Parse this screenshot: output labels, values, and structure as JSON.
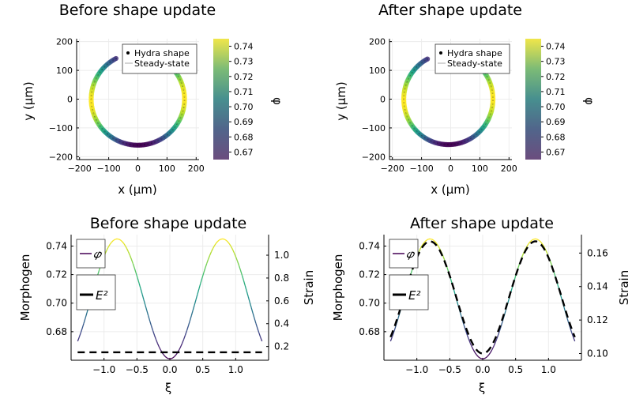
{
  "colors": {
    "viridis": [
      "#440154",
      "#482878",
      "#3e4989",
      "#31688e",
      "#26828e",
      "#1f9e89",
      "#35b779",
      "#6ece58",
      "#b5de2b",
      "#fde725"
    ]
  },
  "chart_data": [
    {
      "type": "scatter",
      "title": "Before shape update",
      "xlabel": "x (μm)",
      "ylabel": "y (μm)",
      "xlim": [
        -210,
        210
      ],
      "ylim": [
        -210,
        210
      ],
      "xticks": [
        "−200",
        "−100",
        "0",
        "100",
        "200"
      ],
      "xtick_values": [
        -200,
        -100,
        0,
        100,
        200
      ],
      "yticks": [
        "200",
        "100",
        "0",
        "−100",
        "−200"
      ],
      "ytick_values": [
        200,
        100,
        0,
        -100,
        -200
      ],
      "legend": [
        "Hydra shape",
        "Steady-state"
      ],
      "legend_position": "top-right",
      "colorbar_label": "φ",
      "colorbar_ticks": [
        "0.74",
        "0.73",
        "0.72",
        "0.71",
        "0.70",
        "0.69",
        "0.68",
        "0.67"
      ],
      "colorbar_tick_values": [
        0.74,
        0.73,
        0.72,
        0.71,
        0.7,
        0.69,
        0.68,
        0.67
      ],
      "colorbar_range": [
        0.665,
        0.745
      ],
      "shape": {
        "rx": 160,
        "cy": 0,
        "ry": 160,
        "cx": 0,
        "gap_start_deg": 70,
        "gap_end_deg": 118
      },
      "grid": true
    },
    {
      "type": "scatter",
      "title": "After shape update",
      "xlabel": "x (μm)",
      "ylabel": "y (μm)",
      "xlim": [
        -210,
        210
      ],
      "ylim": [
        -210,
        210
      ],
      "xticks": [
        "−200",
        "−100",
        "0",
        "100",
        "200"
      ],
      "xtick_values": [
        -200,
        -100,
        0,
        100,
        200
      ],
      "yticks": [
        "200",
        "100",
        "0",
        "−100",
        "−200"
      ],
      "ytick_values": [
        200,
        100,
        0,
        -100,
        -200
      ],
      "legend": [
        "Hydra shape",
        "Steady-state"
      ],
      "legend_position": "top-right",
      "colorbar_label": "φ",
      "colorbar_ticks": [
        "0.74",
        "0.73",
        "0.72",
        "0.71",
        "0.70",
        "0.69",
        "0.68",
        "0.67"
      ],
      "colorbar_tick_values": [
        0.74,
        0.73,
        0.72,
        0.71,
        0.7,
        0.69,
        0.68,
        0.67
      ],
      "colorbar_range": [
        0.665,
        0.745
      ],
      "shape": {
        "rx": 153,
        "cy": 0,
        "ry": 158,
        "cx": -8,
        "gap_start_deg": 70,
        "gap_end_deg": 118
      },
      "grid": true
    },
    {
      "type": "line",
      "title": "Before shape update",
      "xlabel": "ξ",
      "ylabel": "Morphogen",
      "y2label": "Strain",
      "xlim": [
        -1.5,
        1.5
      ],
      "ylim": [
        0.66,
        0.748
      ],
      "y2lim": [
        0.08,
        1.18
      ],
      "xticks": [
        "−1.0",
        "−0.5",
        "0.0",
        "0.5",
        "1.0"
      ],
      "xtick_values": [
        -1.0,
        -0.5,
        0.0,
        0.5,
        1.0
      ],
      "yticks": [
        "0.74",
        "0.72",
        "0.70",
        "0.68"
      ],
      "ytick_values": [
        0.74,
        0.72,
        0.7,
        0.68
      ],
      "y2ticks": [
        "1.0",
        "0.8",
        "0.6",
        "0.4",
        "0.2"
      ],
      "y2tick_values": [
        1.0,
        0.8,
        0.6,
        0.4,
        0.2
      ],
      "legend": [
        "𝜑",
        "E²"
      ],
      "legend_position": "top-left",
      "series": [
        {
          "name": "𝜑",
          "axis": "left",
          "x_range": [
            -1.4,
            1.4
          ],
          "min": 0.661,
          "max": 0.745,
          "peaks": [
            -0.8,
            0.8
          ],
          "valley": 0.0
        },
        {
          "name": "E²",
          "axis": "right",
          "style": "dashed",
          "x_range": [
            -1.4,
            1.4
          ],
          "constant": 0.15
        }
      ],
      "grid": true
    },
    {
      "type": "line",
      "title": "After shape update",
      "xlabel": "ξ",
      "ylabel": "Morphogen",
      "y2label": "Strain",
      "xlim": [
        -1.5,
        1.5
      ],
      "ylim": [
        0.66,
        0.748
      ],
      "y2lim": [
        0.096,
        0.171
      ],
      "xticks": [
        "−1.0",
        "−0.5",
        "0.0",
        "0.5",
        "1.0"
      ],
      "xtick_values": [
        -1.0,
        -0.5,
        0.0,
        0.5,
        1.0
      ],
      "yticks": [
        "0.74",
        "0.72",
        "0.70",
        "0.68"
      ],
      "ytick_values": [
        0.74,
        0.72,
        0.7,
        0.68
      ],
      "y2ticks": [
        "0.16",
        "0.14",
        "0.12",
        "0.10"
      ],
      "y2tick_values": [
        0.16,
        0.14,
        0.12,
        0.1
      ],
      "legend": [
        "𝜑",
        "E²"
      ],
      "legend_position": "top-left",
      "series": [
        {
          "name": "𝜑",
          "axis": "left",
          "x_range": [
            -1.4,
            1.4
          ],
          "min": 0.661,
          "max": 0.745,
          "peaks": [
            -0.8,
            0.8
          ],
          "valley": 0.0
        },
        {
          "name": "E²",
          "axis": "right",
          "style": "dashed",
          "x_range": [
            -1.4,
            1.4
          ],
          "min": 0.1,
          "max": 0.167,
          "ends": 0.116
        }
      ],
      "grid": true
    }
  ]
}
